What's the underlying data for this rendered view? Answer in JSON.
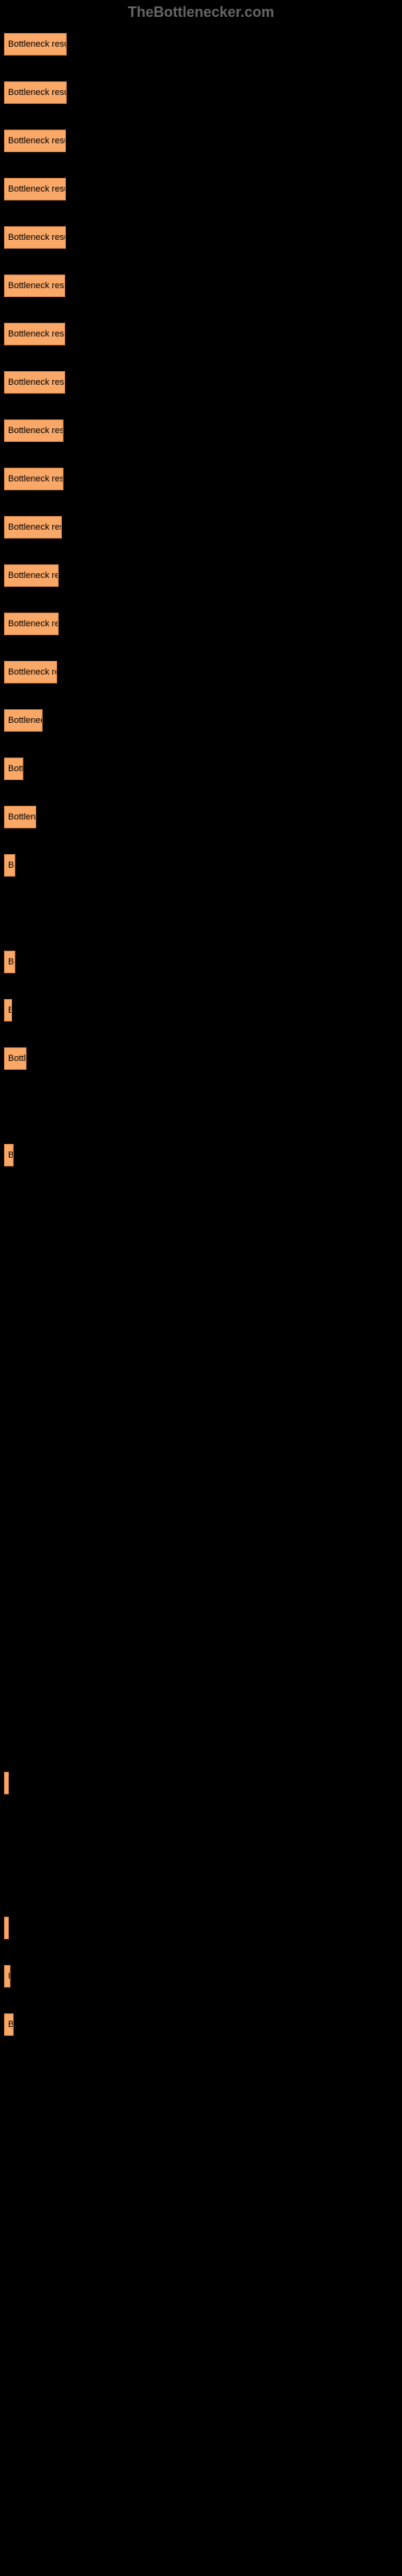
{
  "watermark": "TheBottlenecker.com",
  "chart": {
    "type": "bar",
    "background_color": "#000000",
    "bar_color": "#f9a868",
    "bar_border_color": "#d08040",
    "text_color": "#000000",
    "max_value": 100,
    "bars": [
      {
        "label": "Bottleneck result",
        "width": 78
      },
      {
        "label": "Bottleneck result",
        "width": 78
      },
      {
        "label": "Bottleneck result",
        "width": 77
      },
      {
        "label": "Bottleneck result",
        "width": 77
      },
      {
        "label": "Bottleneck result",
        "width": 77
      },
      {
        "label": "Bottleneck resu",
        "width": 76
      },
      {
        "label": "Bottleneck result",
        "width": 76
      },
      {
        "label": "Bottleneck result",
        "width": 76
      },
      {
        "label": "Bottleneck resu",
        "width": 74
      },
      {
        "label": "Bottleneck resu",
        "width": 74
      },
      {
        "label": "Bottleneck res",
        "width": 72
      },
      {
        "label": "Bottleneck re",
        "width": 68
      },
      {
        "label": "Bottleneck re",
        "width": 68
      },
      {
        "label": "Bottleneck re",
        "width": 66
      },
      {
        "label": "Bottlenec",
        "width": 48
      },
      {
        "label": "Bott",
        "width": 24
      },
      {
        "label": "Bottlene",
        "width": 40
      },
      {
        "label": "Bo",
        "width": 14
      },
      {
        "label": "",
        "width": 0
      },
      {
        "label": "Bo",
        "width": 14
      },
      {
        "label": "B",
        "width": 10
      },
      {
        "label": "Bottl",
        "width": 28
      },
      {
        "label": "",
        "width": 0
      },
      {
        "label": "B",
        "width": 12
      },
      {
        "label": "",
        "width": 0
      },
      {
        "label": "",
        "width": 0
      },
      {
        "label": "",
        "width": 0
      },
      {
        "label": "",
        "width": 0
      },
      {
        "label": "",
        "width": 0
      },
      {
        "label": "",
        "width": 0
      },
      {
        "label": "",
        "width": 0
      },
      {
        "label": "",
        "width": 0
      },
      {
        "label": "",
        "width": 0
      },
      {
        "label": "",
        "width": 0
      },
      {
        "label": "",
        "width": 0
      },
      {
        "label": "",
        "width": 0
      },
      {
        "label": "",
        "width": 2
      },
      {
        "label": "",
        "width": 0
      },
      {
        "label": "",
        "width": 0
      },
      {
        "label": "",
        "width": 4
      },
      {
        "label": "B",
        "width": 8
      },
      {
        "label": "B",
        "width": 12
      }
    ]
  }
}
